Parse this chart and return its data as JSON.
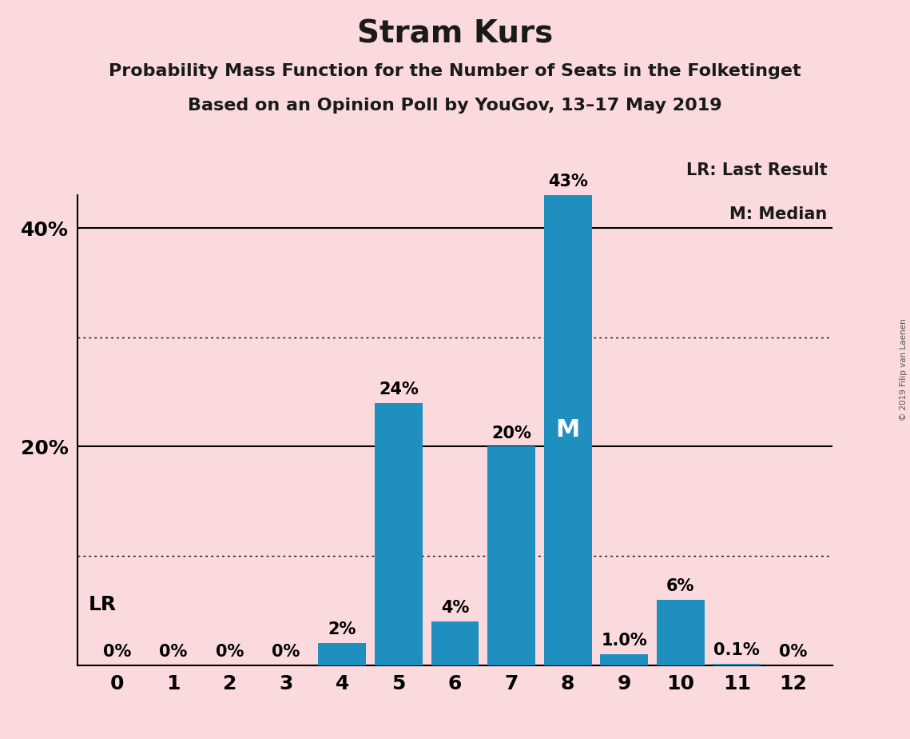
{
  "title": "Stram Kurs",
  "subtitle1": "Probability Mass Function for the Number of Seats in the Folketinget",
  "subtitle2": "Based on an Opinion Poll by YouGov, 13–17 May 2019",
  "copyright": "© 2019 Filip van Laenen",
  "categories": [
    0,
    1,
    2,
    3,
    4,
    5,
    6,
    7,
    8,
    9,
    10,
    11,
    12
  ],
  "values": [
    0.0,
    0.0,
    0.0,
    0.0,
    2.0,
    24.0,
    4.0,
    20.0,
    43.0,
    1.0,
    6.0,
    0.1,
    0.0
  ],
  "bar_labels": [
    "0%",
    "0%",
    "0%",
    "0%",
    "2%",
    "24%",
    "4%",
    "20%",
    "43%",
    "1.0%",
    "6%",
    "0.1%",
    "0%"
  ],
  "bar_color": "#1f8fc0",
  "background_color": "#fadadd",
  "median_bar": 8,
  "median_label": "M",
  "lr_label": "LR",
  "legend_text1": "LR: Last Result",
  "legend_text2": "M: Median",
  "solid_yticks": [
    0,
    20,
    40
  ],
  "dotted_yticks": [
    10,
    30
  ],
  "ylim": [
    0,
    47
  ],
  "title_fontsize": 28,
  "subtitle_fontsize": 16,
  "tick_fontsize": 18,
  "bar_label_fontsize": 15,
  "legend_fontsize": 15,
  "median_label_fontsize": 22
}
